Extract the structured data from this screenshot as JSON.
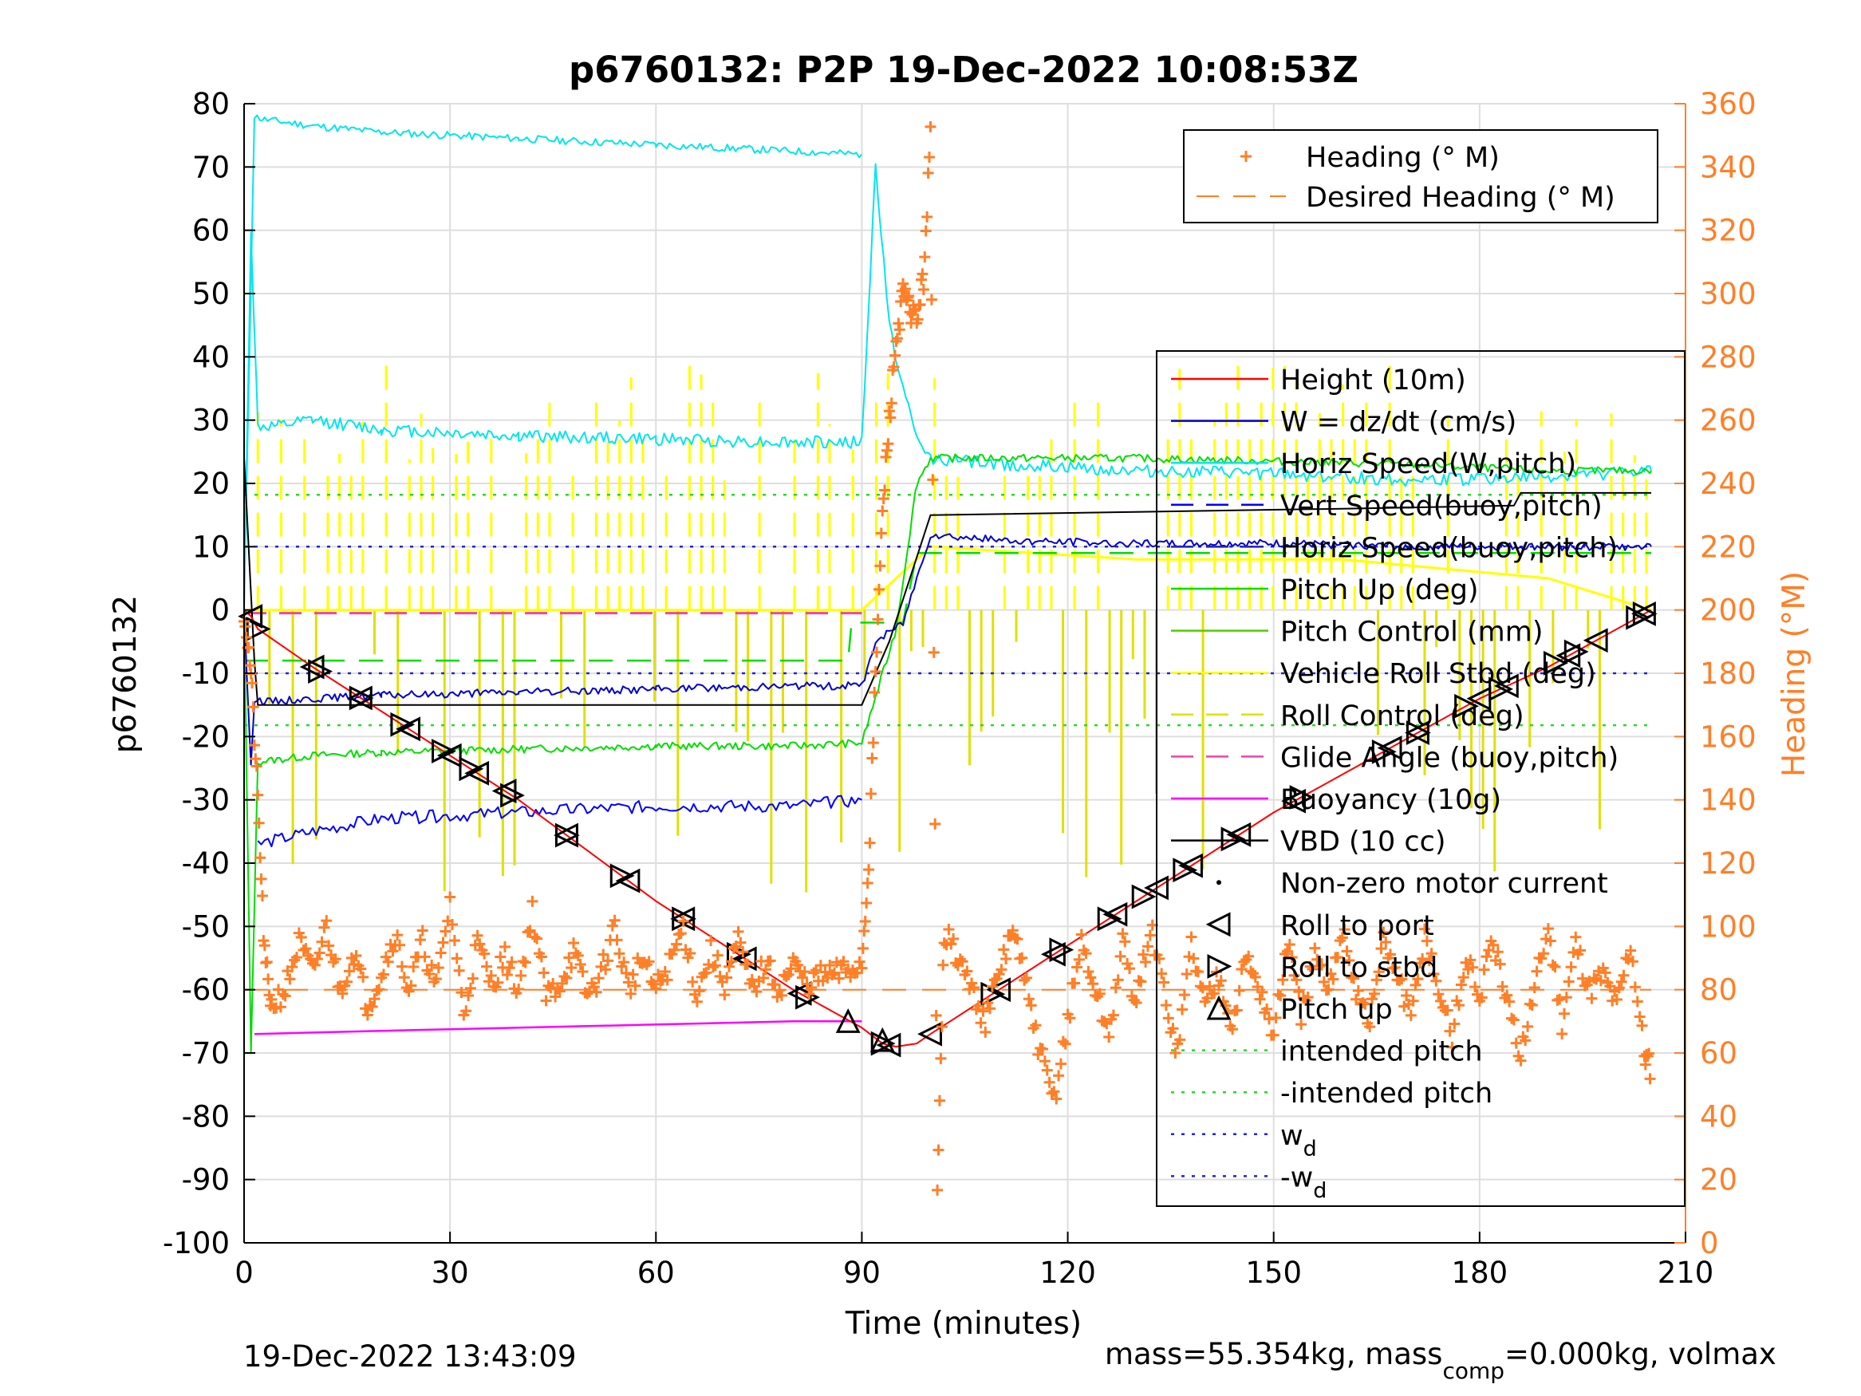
{
  "chart_data": {
    "type": "line",
    "title": "p6760132: P2P 19-Dec-2022 10:08:53Z",
    "xlabel": "Time (minutes)",
    "ylabel": "p6760132",
    "y2label": "Heading (°M)",
    "xlim": [
      0,
      210
    ],
    "ylim": [
      -100,
      80
    ],
    "y2lim": [
      0,
      360
    ],
    "xticks": [
      0,
      30,
      60,
      90,
      120,
      150,
      180,
      210
    ],
    "yticks": [
      -100,
      -90,
      -80,
      -70,
      -60,
      -50,
      -40,
      -30,
      -20,
      -10,
      0,
      10,
      20,
      30,
      40,
      50,
      60,
      70,
      80
    ],
    "y2ticks": [
      0,
      20,
      40,
      60,
      80,
      100,
      120,
      140,
      160,
      180,
      200,
      220,
      240,
      260,
      280,
      300,
      320,
      340,
      360
    ],
    "grid": true,
    "colors": {
      "height": "#ff0000",
      "w": "#0000cc",
      "horiz_w": "#00e5ee",
      "vert_buoy": "#0000ff",
      "horiz_buoy": "#2020c0",
      "pitch": "#00dd00",
      "pitch_ctl": "#55cc00",
      "roll": "#ffff00",
      "roll_ctl": "#e0e000",
      "glide": "#ee44aa",
      "buoyancy": "#ff00ff",
      "vbd": "#000000",
      "heading": "#ff7f27",
      "intended": "#22dd22",
      "wd": "#2222dd"
    },
    "legend_heading": {
      "location": "top-right",
      "entries": [
        "Heading (° M)",
        "Desired Heading (° M)"
      ]
    },
    "legend_main": {
      "location": "right",
      "entries": [
        "Height (10m)",
        "W = dz/dt (cm/s)",
        "Horiz Speed(W,pitch)",
        "Vert Speed(buoy,pitch)",
        "Horiz Speed(buoy,pitch)",
        "Pitch Up (deg)",
        "Pitch Control (mm)",
        "Vehicle Roll Stbd (deg)",
        "Roll Control (deg)",
        "Glide Angle (buoy,pitch)",
        "Buoyancy (10g)",
        "VBD (10 cc)",
        "Non-zero motor current",
        "Roll to port",
        "Roll to stbd",
        "Pitch up",
        "intended pitch",
        "-intended pitch",
        "w",
        "-w"
      ],
      "subscript": "d"
    },
    "series": [
      {
        "name": "Height (10m)",
        "axis": "left",
        "x": [
          0,
          1,
          2,
          10,
          20,
          30,
          40,
          50,
          60,
          70,
          80,
          85,
          90,
          93,
          95,
          98,
          100,
          110,
          120,
          130,
          140,
          150,
          160,
          170,
          180,
          190,
          200,
          205
        ],
        "y": [
          0,
          -1,
          -3,
          -9,
          -16,
          -23,
          -30,
          -38,
          -46,
          -53,
          -60,
          -63,
          -66,
          -68.5,
          -69,
          -68.5,
          -67,
          -60,
          -53,
          -46,
          -39,
          -32,
          -26,
          -20,
          -14,
          -9,
          -3,
          0
        ]
      },
      {
        "name": "W = dz/dt (cm/s)",
        "axis": "left",
        "x": [
          0,
          1,
          1.5,
          3,
          10,
          20,
          40,
          60,
          80,
          90,
          92,
          96,
          100,
          110,
          130,
          150,
          170,
          190,
          205
        ],
        "y": [
          0,
          -25,
          -14,
          -14.5,
          -14,
          -13.5,
          -13,
          -12.5,
          -12,
          -12,
          -5,
          -2,
          12,
          11,
          10.5,
          10.5,
          10,
          10,
          10
        ]
      },
      {
        "name": "Horiz Speed(W,pitch)",
        "axis": "left",
        "x": [
          0,
          1,
          2,
          5,
          10,
          20,
          40,
          60,
          80,
          90,
          92,
          94,
          96,
          98,
          100,
          110,
          130,
          150,
          170,
          190,
          205
        ],
        "y": [
          0,
          60,
          29,
          29,
          30,
          28.5,
          27.5,
          27,
          26.5,
          26.5,
          70,
          45,
          35,
          27,
          24,
          23,
          22,
          21.5,
          20.5,
          21,
          22
        ]
      },
      {
        "name": "Horiz Speed(W,pitch) (upper)",
        "axis": "left",
        "x": [
          0,
          1.5,
          3,
          10,
          20,
          40,
          60,
          80,
          90
        ],
        "y": [
          0,
          78,
          77.5,
          76.5,
          75.5,
          74.5,
          73.5,
          72.5,
          72
        ]
      },
      {
        "name": "Vert Speed(buoy,pitch)",
        "axis": "left",
        "x": [
          2,
          10,
          20,
          40,
          60,
          80,
          90
        ],
        "y": [
          -37,
          -35,
          -33,
          -32,
          -31,
          -31,
          -30
        ]
      },
      {
        "name": "Pitch Up (deg)",
        "axis": "left",
        "x": [
          0,
          1,
          2,
          10,
          20,
          40,
          60,
          80,
          90,
          95,
          98,
          100,
          110,
          130,
          150,
          170,
          190,
          205
        ],
        "y": [
          0,
          -70,
          -24,
          -23,
          -22.5,
          -22,
          -21.5,
          -21.5,
          -21,
          -3,
          20,
          24,
          24,
          24,
          23.5,
          23,
          22,
          22
        ]
      },
      {
        "name": "Pitch Control (mm)",
        "axis": "left",
        "x": [
          0,
          2,
          88,
          88.5,
          96,
          98,
          205
        ],
        "y": [
          -8,
          -8,
          -8,
          -2,
          -2,
          9,
          9
        ]
      },
      {
        "name": "Vehicle Roll Stbd (deg)",
        "axis": "left",
        "x": [
          0,
          2,
          10,
          30,
          60,
          90,
          100,
          130,
          160,
          190,
          205
        ],
        "y": [
          0,
          0,
          0,
          0,
          0,
          0,
          10,
          8,
          8,
          5,
          0
        ]
      },
      {
        "name": "Glide Angle (buoy,pitch)",
        "axis": "left",
        "x": [
          0,
          90
        ],
        "y": [
          -0.5,
          -0.5
        ]
      },
      {
        "name": "Buoyancy (10g)",
        "axis": "left",
        "x": [
          1.5,
          20,
          40,
          60,
          80,
          90
        ],
        "y": [
          -67,
          -66.5,
          -66,
          -65.5,
          -65,
          -65
        ]
      },
      {
        "name": "VBD (10 cc)",
        "axis": "left",
        "x": [
          0,
          1.5,
          2,
          10,
          20,
          40,
          60,
          80,
          90,
          94,
          97,
          100,
          130,
          160,
          185,
          186,
          205
        ],
        "y": [
          24,
          -8,
          -15,
          -15,
          -15,
          -15,
          -15,
          -15,
          -15,
          -5,
          5,
          15,
          15.5,
          16,
          16.5,
          18.5,
          18.5
        ]
      },
      {
        "name": "intended pitch",
        "axis": "left",
        "x": [
          0,
          205
        ],
        "y": [
          18.2,
          18.2
        ]
      },
      {
        "name": "-intended pitch",
        "axis": "left",
        "x": [
          0,
          205
        ],
        "y": [
          -18.2,
          -18.2
        ]
      },
      {
        "name": "w",
        "axis": "left",
        "x": [
          0,
          205
        ],
        "y": [
          10,
          10
        ]
      },
      {
        "name": "-w",
        "axis": "left",
        "x": [
          0,
          205
        ],
        "y": [
          -10,
          -10
        ]
      },
      {
        "name": "Desired Heading (° M)",
        "axis": "right",
        "x": [
          0,
          205
        ],
        "y": [
          80,
          80
        ]
      },
      {
        "name": "Heading (° M)",
        "axis": "right",
        "x": [
          0,
          1,
          2,
          3,
          4,
          6,
          8,
          10,
          12,
          14,
          16,
          18,
          20,
          22,
          24,
          26,
          28,
          30,
          32,
          34,
          36,
          38,
          40,
          42,
          44,
          46,
          48,
          50,
          52,
          54,
          56,
          58,
          60,
          62,
          64,
          66,
          68,
          70,
          72,
          74,
          76,
          78,
          80,
          82,
          84,
          86,
          88,
          90,
          91,
          92,
          93,
          94,
          95,
          96,
          97,
          98,
          99,
          100,
          101,
          102,
          104,
          106,
          108,
          110,
          112,
          114,
          116,
          118,
          120,
          122,
          124,
          126,
          128,
          130,
          132,
          134,
          136,
          138,
          140,
          142,
          144,
          146,
          148,
          150,
          152,
          154,
          156,
          158,
          160,
          162,
          164,
          166,
          168,
          170,
          172,
          174,
          176,
          178,
          180,
          182,
          184,
          186,
          188,
          190,
          192,
          194,
          196,
          198,
          200,
          202,
          204,
          205
        ],
        "y": [
          200,
          180,
          140,
          90,
          75,
          80,
          95,
          85,
          100,
          80,
          92,
          75,
          85,
          98,
          80,
          95,
          80,
          108,
          72,
          95,
          82,
          90,
          80,
          105,
          78,
          82,
          92,
          78,
          85,
          100,
          80,
          90,
          80,
          88,
          100,
          78,
          92,
          82,
          95,
          80,
          88,
          80,
          88,
          82,
          84,
          85,
          86,
          88,
          120,
          180,
          230,
          260,
          285,
          300,
          295,
          292,
          305,
          350,
          20,
          98,
          90,
          80,
          70,
          85,
          100,
          80,
          60,
          45,
          70,
          95,
          80,
          65,
          95,
          75,
          100,
          80,
          60,
          95,
          75,
          85,
          70,
          90,
          80,
          65,
          95,
          72,
          90,
          78,
          100,
          80,
          70,
          95,
          85,
          70,
          98,
          80,
          65,
          90,
          78,
          95,
          75,
          60,
          80,
          100,
          70,
          95,
          80,
          85,
          75,
          95,
          60,
          55
        ]
      }
    ],
    "markers": {
      "roll_to_port_x": [
        1,
        10,
        17,
        24,
        30,
        34,
        38,
        47,
        56,
        64,
        73,
        81,
        94,
        100,
        110,
        118,
        127,
        133,
        138,
        145,
        153,
        167,
        171,
        180,
        184,
        193,
        197,
        204
      ],
      "roll_to_stbd_x": [
        2,
        11,
        17,
        23,
        29,
        33,
        39,
        47,
        55,
        64,
        72,
        82,
        93,
        109,
        119,
        126,
        131,
        137,
        144,
        154,
        166,
        171,
        178,
        183,
        191,
        194,
        203,
        204
      ],
      "pitch_up_x": [
        88,
        93
      ],
      "pitch_up_y": [
        -65,
        -68
      ]
    }
  },
  "footer": {
    "timestamp": "19-Dec-2022 13:43:09",
    "mass_text": "mass=55.354kg, mass",
    "mass_sub": "comp",
    "mass_rest": "=0.000kg, volmax"
  }
}
